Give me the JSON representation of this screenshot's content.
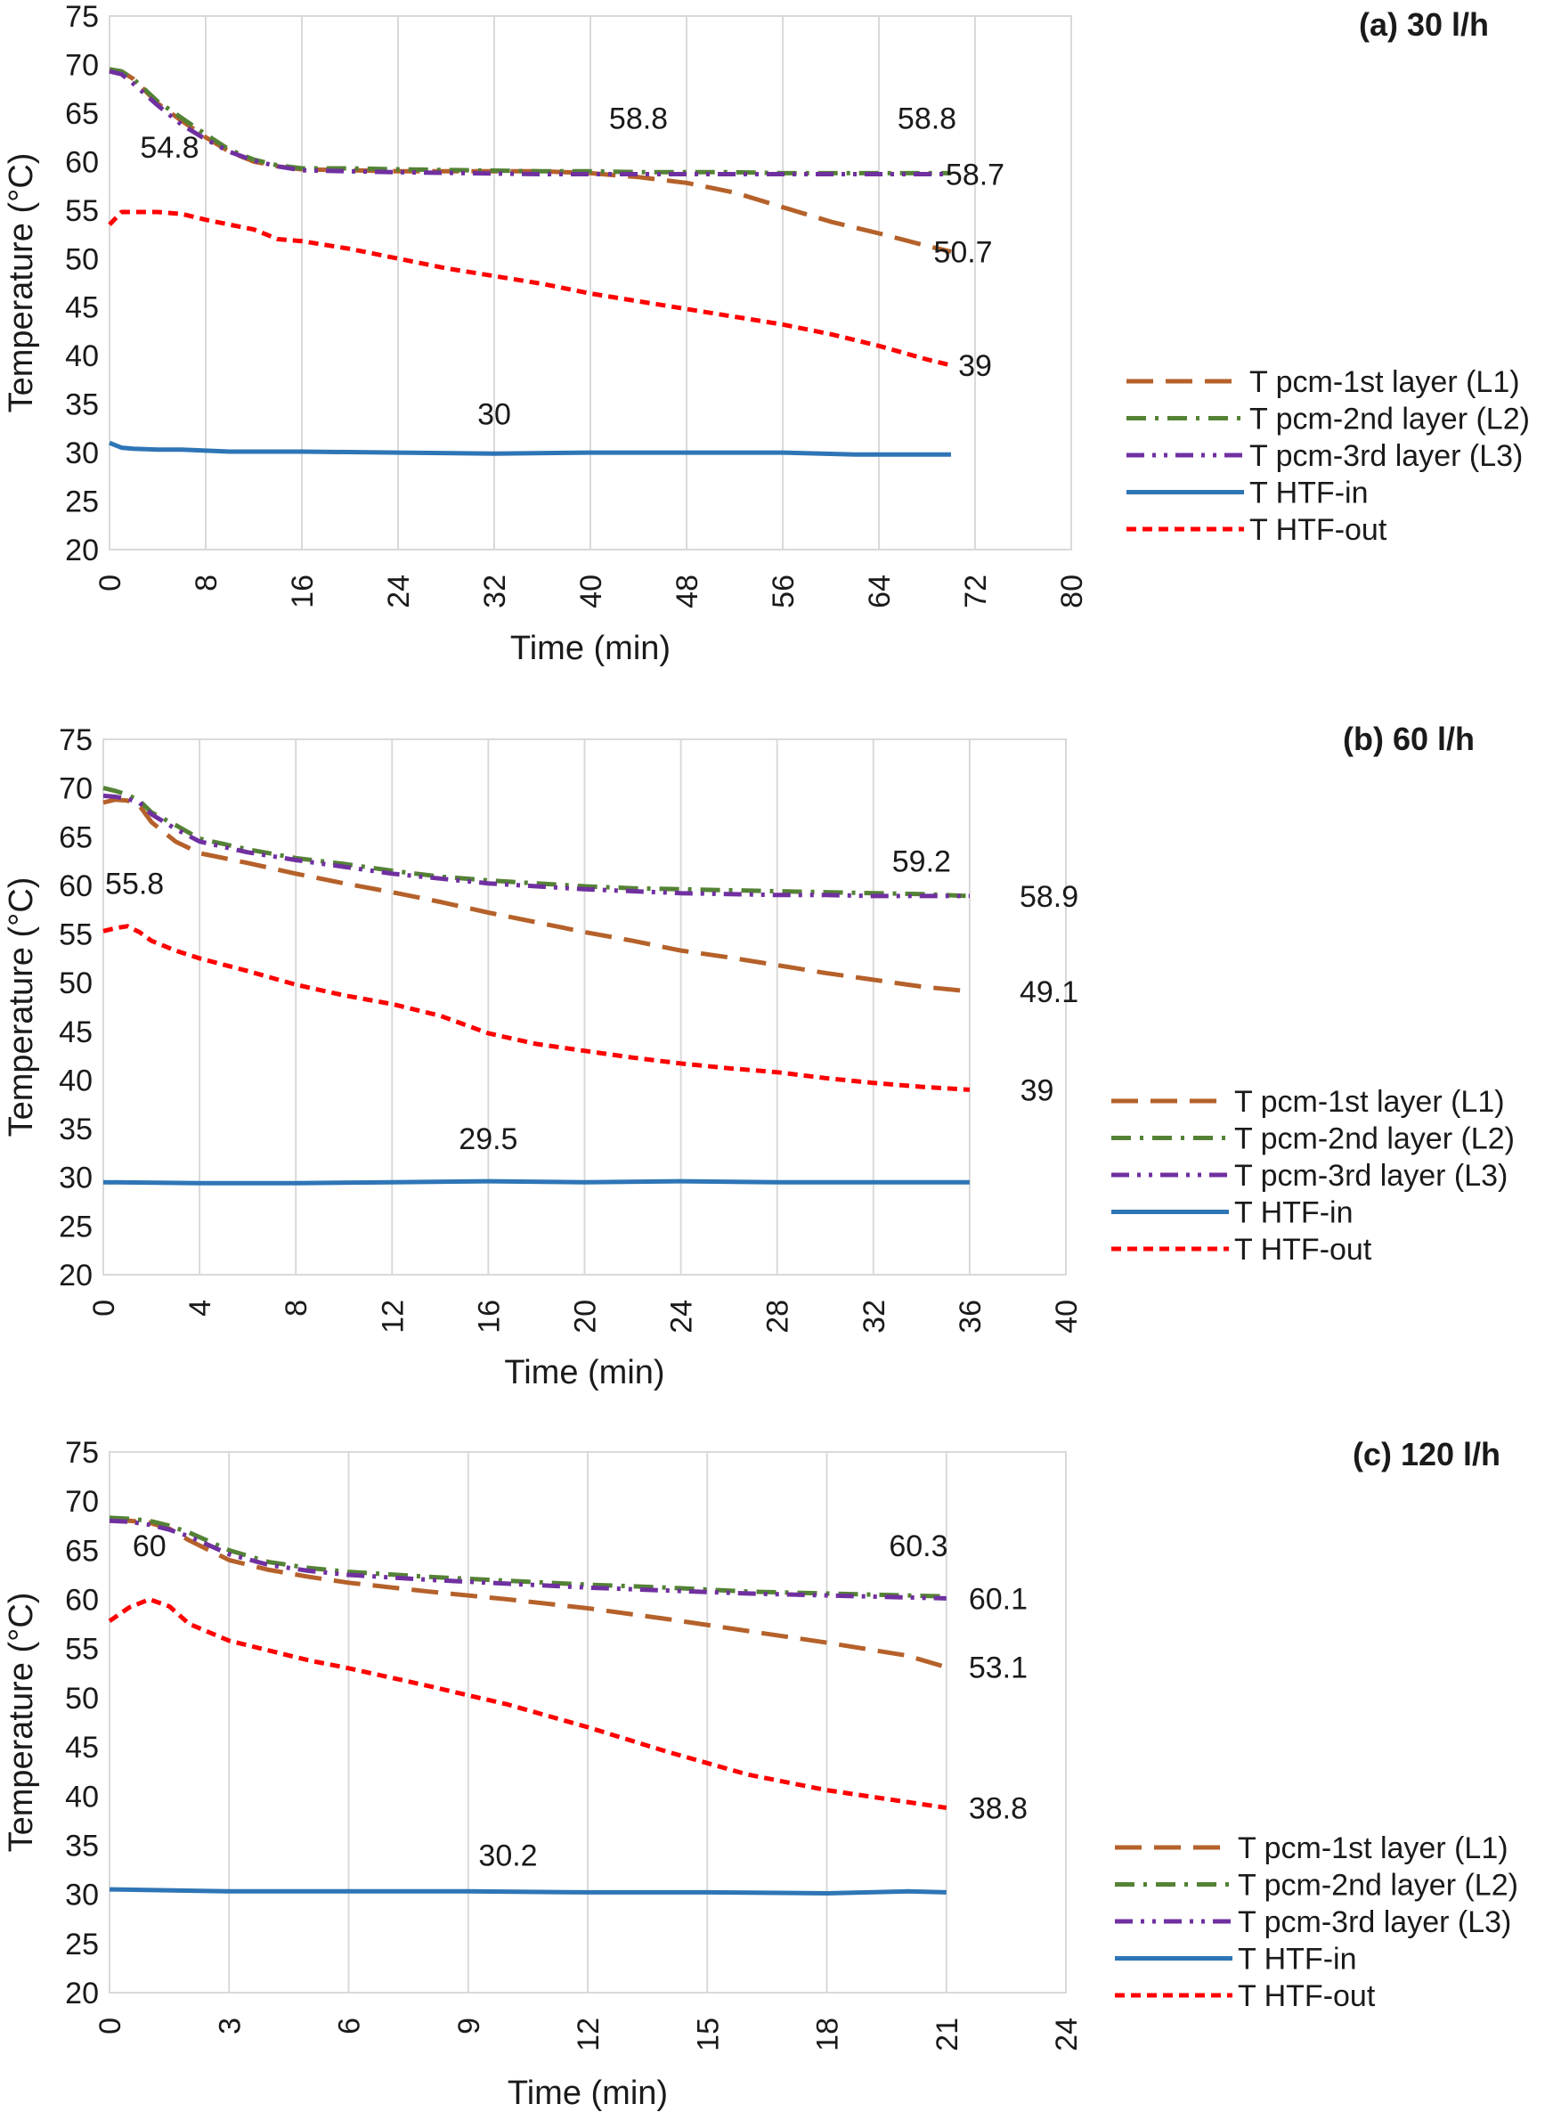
{
  "chart_data": [
    {
      "type": "line",
      "title": "(a) 30 l/h",
      "xlabel": "Time (min)",
      "ylabel": "Temperature (°C)",
      "xlim": [
        0,
        80
      ],
      "ylim": [
        20,
        75
      ],
      "xticks": [
        0,
        8,
        16,
        24,
        32,
        40,
        48,
        56,
        64,
        72,
        80
      ],
      "yticks": [
        20,
        25,
        30,
        35,
        40,
        45,
        50,
        55,
        60,
        65,
        70,
        75
      ],
      "grid": "vertical",
      "legend": "right",
      "series": [
        {
          "name": "T pcm-1st layer (L1)",
          "color": "#b5612a",
          "style": "dashed",
          "x": [
            0,
            1,
            2,
            4,
            6,
            8,
            10,
            12,
            14,
            16,
            20,
            24,
            30,
            36,
            40,
            44,
            48,
            52,
            56,
            60,
            64,
            68,
            70
          ],
          "y": [
            69.5,
            69.3,
            68.5,
            66.0,
            64.2,
            62.5,
            61.0,
            60.0,
            59.5,
            59.2,
            59.1,
            59.0,
            59.0,
            59.0,
            58.8,
            58.4,
            57.8,
            56.8,
            55.3,
            53.8,
            52.6,
            51.3,
            50.7
          ]
        },
        {
          "name": "T pcm-2nd layer (L2)",
          "color": "#548235",
          "style": "dashdot",
          "x": [
            0,
            1,
            2,
            4,
            6,
            8,
            10,
            12,
            14,
            16,
            20,
            24,
            30,
            36,
            40,
            44,
            48,
            52,
            56,
            60,
            64,
            68,
            70
          ],
          "y": [
            69.5,
            69.3,
            68.5,
            66.2,
            64.5,
            62.8,
            61.2,
            60.2,
            59.6,
            59.3,
            59.3,
            59.2,
            59.1,
            59.0,
            59.0,
            58.9,
            58.9,
            58.9,
            58.8,
            58.8,
            58.8,
            58.8,
            58.8
          ]
        },
        {
          "name": "T pcm-3rd layer (L3)",
          "color": "#7030a0",
          "style": "dashdotdot",
          "x": [
            0,
            1,
            2,
            4,
            6,
            8,
            10,
            12,
            14,
            16,
            20,
            24,
            30,
            36,
            40,
            44,
            48,
            52,
            56,
            60,
            64,
            68,
            70
          ],
          "y": [
            69.3,
            69.0,
            68.0,
            65.8,
            63.8,
            62.3,
            61.0,
            60.1,
            59.5,
            59.1,
            59.0,
            58.9,
            58.8,
            58.7,
            58.7,
            58.7,
            58.7,
            58.7,
            58.7,
            58.7,
            58.7,
            58.7,
            58.7
          ]
        },
        {
          "name": "T HTF-in",
          "color": "#2e75b6",
          "style": "solid",
          "x": [
            0,
            1,
            2,
            4,
            6,
            8,
            10,
            16,
            24,
            32,
            40,
            48,
            56,
            62,
            70
          ],
          "y": [
            31.0,
            30.5,
            30.4,
            30.3,
            30.3,
            30.2,
            30.1,
            30.1,
            30.0,
            29.9,
            30.0,
            30.0,
            30.0,
            29.8,
            29.8
          ]
        },
        {
          "name": "T HTF-out",
          "color": "#ff0000",
          "style": "dotted",
          "x": [
            0,
            1,
            2,
            4,
            6,
            8,
            10,
            12,
            14,
            16,
            20,
            24,
            28,
            32,
            36,
            40,
            44,
            48,
            52,
            56,
            60,
            64,
            68,
            70
          ],
          "y": [
            53.5,
            54.8,
            54.8,
            54.8,
            54.6,
            54.0,
            53.5,
            53.0,
            52.0,
            51.8,
            51.0,
            50.0,
            49.0,
            48.2,
            47.4,
            46.4,
            45.6,
            44.8,
            44.0,
            43.2,
            42.2,
            41.0,
            39.6,
            39.0
          ]
        }
      ],
      "annotations": [
        {
          "text": "54.8",
          "x": 5,
          "y": 61.5
        },
        {
          "text": "58.8",
          "x": 44,
          "y": 64.5
        },
        {
          "text": "58.8",
          "x": 68,
          "y": 64.5
        },
        {
          "text": "58.7",
          "x": 72,
          "y": 58.7
        },
        {
          "text": "50.7",
          "x": 71,
          "y": 50.7
        },
        {
          "text": "39",
          "x": 72,
          "y": 39
        },
        {
          "text": "30",
          "x": 32,
          "y": 34
        }
      ]
    },
    {
      "type": "line",
      "title": "(b) 60 l/h",
      "xlabel": "Time (min)",
      "ylabel": "Temperature (°C)",
      "xlim": [
        0,
        40
      ],
      "ylim": [
        20,
        75
      ],
      "xticks": [
        0,
        4,
        8,
        12,
        16,
        20,
        24,
        28,
        32,
        36,
        40
      ],
      "yticks": [
        20,
        25,
        30,
        35,
        40,
        45,
        50,
        55,
        60,
        65,
        70,
        75
      ],
      "grid": "vertical",
      "legend": "right",
      "series": [
        {
          "name": "T pcm-1st layer (L1)",
          "color": "#b5612a",
          "style": "dashed",
          "x": [
            0,
            0.5,
            1,
            1.5,
            2,
            3,
            4,
            6,
            8,
            10,
            12,
            14,
            16,
            18,
            20,
            22,
            24,
            26,
            28,
            30,
            32,
            34,
            36
          ],
          "y": [
            68.5,
            68.8,
            68.7,
            68.2,
            66.5,
            64.5,
            63.3,
            62.3,
            61.2,
            60.2,
            59.3,
            58.3,
            57.2,
            56.2,
            55.2,
            54.3,
            53.3,
            52.6,
            51.8,
            51.0,
            50.3,
            49.6,
            49.1
          ]
        },
        {
          "name": "T pcm-2nd layer (L2)",
          "color": "#548235",
          "style": "dashdot",
          "x": [
            0,
            0.5,
            1,
            1.5,
            2,
            3,
            4,
            6,
            8,
            10,
            12,
            14,
            16,
            18,
            20,
            22,
            24,
            26,
            28,
            30,
            32,
            34,
            36
          ],
          "y": [
            70.0,
            69.7,
            69.3,
            68.7,
            67.5,
            66.2,
            64.8,
            63.7,
            62.8,
            62.2,
            61.5,
            60.9,
            60.5,
            60.2,
            59.9,
            59.7,
            59.6,
            59.5,
            59.4,
            59.3,
            59.2,
            59.1,
            58.9
          ]
        },
        {
          "name": "T pcm-3rd layer (L3)",
          "color": "#7030a0",
          "style": "dashdotdot",
          "x": [
            0,
            0.5,
            1,
            1.5,
            2,
            3,
            4,
            6,
            8,
            10,
            12,
            14,
            16,
            18,
            20,
            22,
            24,
            26,
            28,
            30,
            32,
            34,
            36
          ],
          "y": [
            69.2,
            69.1,
            68.9,
            68.5,
            67.3,
            65.8,
            64.5,
            63.4,
            62.6,
            61.9,
            61.2,
            60.7,
            60.2,
            59.9,
            59.6,
            59.4,
            59.2,
            59.1,
            59.0,
            59.0,
            58.9,
            58.9,
            58.9
          ]
        },
        {
          "name": "T HTF-in",
          "color": "#2e75b6",
          "style": "solid",
          "x": [
            0,
            4,
            8,
            12,
            16,
            20,
            24,
            28,
            32,
            36
          ],
          "y": [
            29.5,
            29.4,
            29.4,
            29.5,
            29.6,
            29.5,
            29.6,
            29.5,
            29.5,
            29.5
          ]
        },
        {
          "name": "T HTF-out",
          "color": "#ff0000",
          "style": "dotted",
          "x": [
            0,
            0.5,
            1,
            1.5,
            2,
            3,
            4,
            6,
            8,
            10,
            12,
            14,
            16,
            18,
            20,
            22,
            24,
            26,
            28,
            30,
            32,
            34,
            36
          ],
          "y": [
            55.3,
            55.6,
            55.8,
            55.2,
            54.3,
            53.3,
            52.5,
            51.2,
            49.8,
            48.7,
            47.8,
            46.6,
            44.8,
            43.7,
            43.0,
            42.3,
            41.7,
            41.2,
            40.8,
            40.2,
            39.7,
            39.3,
            39.0
          ]
        }
      ],
      "annotations": [
        {
          "text": "55.8",
          "x": 1.3,
          "y": 60.2
        },
        {
          "text": "59.2",
          "x": 34,
          "y": 62.5
        },
        {
          "text": "58.9",
          "x": 39.3,
          "y": 58.9
        },
        {
          "text": "49.1",
          "x": 39.3,
          "y": 49.1
        },
        {
          "text": "39",
          "x": 38.8,
          "y": 39
        },
        {
          "text": "29.5",
          "x": 16,
          "y": 34
        }
      ]
    },
    {
      "type": "line",
      "title": "(c) 120 l/h",
      "xlabel": "Time (min)",
      "ylabel": "Temperature (°C)",
      "xlim": [
        0,
        24
      ],
      "ylim": [
        20,
        75
      ],
      "xticks": [
        0,
        3,
        6,
        9,
        12,
        15,
        18,
        21,
        24
      ],
      "yticks": [
        20,
        25,
        30,
        35,
        40,
        45,
        50,
        55,
        60,
        65,
        70,
        75
      ],
      "grid": "vertical",
      "legend": "right",
      "series": [
        {
          "name": "T pcm-1st layer (L1)",
          "color": "#b5612a",
          "style": "dashed",
          "x": [
            0,
            0.5,
            1,
            1.5,
            2,
            3,
            4,
            5,
            6,
            8,
            10,
            12,
            14,
            16,
            18,
            20,
            21
          ],
          "y": [
            68.0,
            68.0,
            67.8,
            67.2,
            66.0,
            64.0,
            63.0,
            62.3,
            61.7,
            60.8,
            60.0,
            59.1,
            58.0,
            56.8,
            55.6,
            54.3,
            53.1
          ]
        },
        {
          "name": "T pcm-2nd layer (L2)",
          "color": "#548235",
          "style": "dashdot",
          "x": [
            0,
            0.5,
            1,
            1.5,
            2,
            3,
            4,
            5,
            6,
            8,
            10,
            12,
            14,
            16,
            18,
            20,
            21
          ],
          "y": [
            68.3,
            68.2,
            68.0,
            67.5,
            66.8,
            65.0,
            63.8,
            63.2,
            62.8,
            62.3,
            61.9,
            61.5,
            61.2,
            60.8,
            60.6,
            60.4,
            60.3
          ]
        },
        {
          "name": "T pcm-3rd layer (L3)",
          "color": "#7030a0",
          "style": "dashdotdot",
          "x": [
            0,
            0.5,
            1,
            1.5,
            2,
            3,
            4,
            5,
            6,
            8,
            10,
            12,
            14,
            16,
            18,
            20,
            21
          ],
          "y": [
            68.0,
            67.9,
            67.6,
            67.1,
            66.4,
            64.6,
            63.5,
            62.9,
            62.5,
            62.0,
            61.6,
            61.2,
            60.9,
            60.6,
            60.4,
            60.2,
            60.1
          ]
        },
        {
          "name": "T HTF-in",
          "color": "#2e75b6",
          "style": "solid",
          "x": [
            0,
            3,
            6,
            9,
            12,
            15,
            18,
            20,
            21
          ],
          "y": [
            30.5,
            30.3,
            30.3,
            30.3,
            30.2,
            30.2,
            30.1,
            30.3,
            30.2
          ]
        },
        {
          "name": "T HTF-out",
          "color": "#ff0000",
          "style": "dotted",
          "x": [
            0,
            0.5,
            1,
            1.5,
            2,
            3,
            4,
            5,
            6,
            8,
            10,
            12,
            14,
            16,
            18,
            20,
            21
          ],
          "y": [
            57.8,
            59.2,
            60.0,
            59.3,
            57.5,
            55.8,
            54.8,
            53.8,
            53.0,
            51.2,
            49.3,
            47.0,
            44.5,
            42.2,
            40.6,
            39.4,
            38.8
          ]
        }
      ],
      "annotations": [
        {
          "text": "60",
          "x": 1.0,
          "y": 65.5
        },
        {
          "text": "60.3",
          "x": 20.3,
          "y": 65.5
        },
        {
          "text": "60.1",
          "x": 22.3,
          "y": 60.1
        },
        {
          "text": "53.1",
          "x": 22.3,
          "y": 53.1
        },
        {
          "text": "38.8",
          "x": 22.3,
          "y": 38.8
        },
        {
          "text": "30.2",
          "x": 10,
          "y": 34
        }
      ]
    }
  ]
}
